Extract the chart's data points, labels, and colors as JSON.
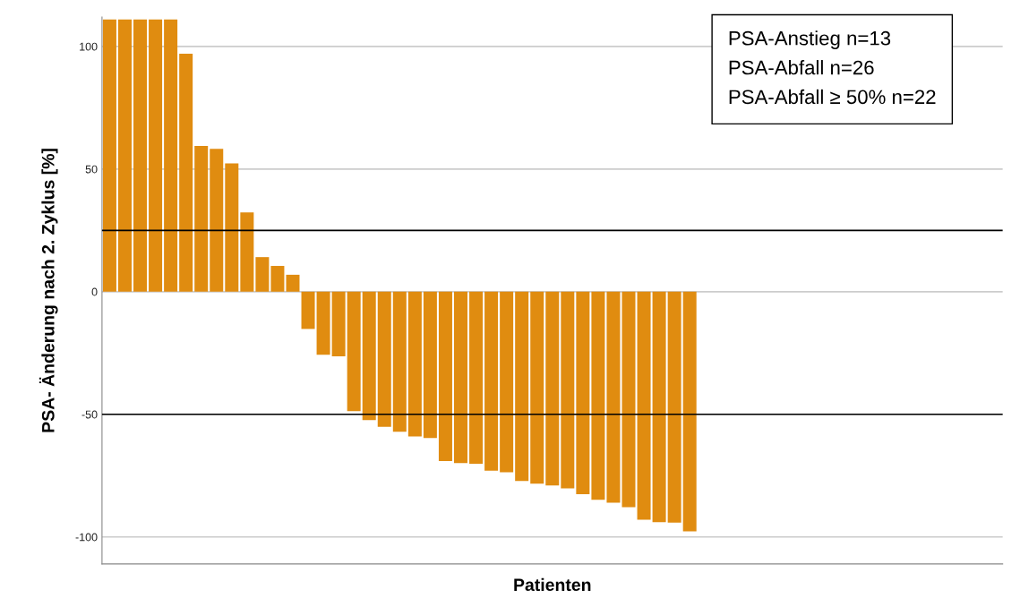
{
  "chart_data": {
    "type": "bar",
    "xlabel": "Patienten",
    "ylabel": "PSA- Änderung nach 2. Zyklus [%]",
    "categories": [
      null,
      null,
      null,
      null,
      null,
      null,
      null,
      null,
      null,
      null,
      null,
      null,
      null,
      null,
      null,
      null,
      null,
      null,
      null,
      null,
      null,
      null,
      null,
      null,
      null,
      null,
      null,
      null,
      null,
      null,
      null,
      null,
      null,
      null,
      null,
      null,
      null,
      null,
      null,
      null,
      null,
      null,
      null,
      null,
      null,
      null,
      null,
      null,
      null,
      null,
      null,
      null,
      null,
      null,
      null,
      null,
      null,
      null,
      null
    ],
    "values": [
      111,
      111,
      111,
      111,
      111,
      97,
      59.4,
      58.2,
      52.3,
      32.3,
      14.1,
      10.5,
      6.9,
      -15.2,
      -25.7,
      -26.4,
      -48.7,
      -52.4,
      -55.1,
      -57.1,
      -59.0,
      -59.7,
      -69.1,
      -69.9,
      -70.2,
      -73.0,
      -73.6,
      -77.2,
      -78.3,
      -79.0,
      -80.2,
      -82.6,
      -84.9,
      -86.0,
      -87.9,
      -93.0,
      -94.0,
      -94.2,
      -97.7,
      null,
      null,
      null,
      null,
      null,
      null,
      null,
      null,
      null,
      null,
      null,
      null,
      null,
      null,
      null,
      null,
      null,
      null,
      null,
      null
    ],
    "color": "#e08c10",
    "ylim": [
      -111,
      112
    ],
    "yticks": [
      -100,
      -50,
      0,
      50,
      100
    ],
    "grid": "y",
    "ref_lines": [
      {
        "axis": "y",
        "value": 25,
        "color": "#000000"
      },
      {
        "axis": "y",
        "value": -50,
        "color": "#000000"
      }
    ],
    "annotations": [
      "PSA-Anstieg n=13",
      "PSA-Abfall n=26",
      "PSA-Abfall ≥ 50% n=22"
    ]
  }
}
